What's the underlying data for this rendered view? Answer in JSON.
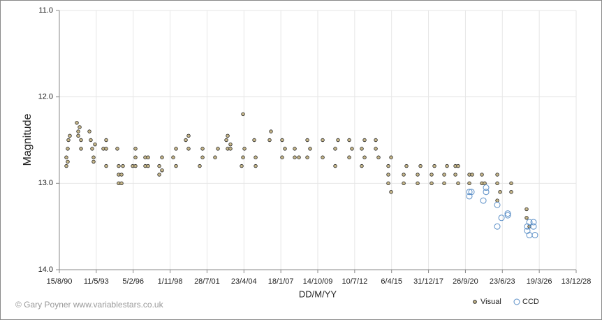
{
  "chart_data": {
    "type": "scatter",
    "x_label": "DD/M/YY",
    "y_label": "Magnitude",
    "credit": "© Gary Poyner  www.variablestars.co.uk",
    "xlim": [
      33100,
      47100
    ],
    "xticks": [
      {
        "value": 33100,
        "label": "15/8/90"
      },
      {
        "value": 34100,
        "label": "11/5/93"
      },
      {
        "value": 35100,
        "label": "5/2/96"
      },
      {
        "value": 36100,
        "label": "1/11/98"
      },
      {
        "value": 37100,
        "label": "28/7/01"
      },
      {
        "value": 38100,
        "label": "23/4/04"
      },
      {
        "value": 39100,
        "label": "18/1/07"
      },
      {
        "value": 40100,
        "label": "14/10/09"
      },
      {
        "value": 41100,
        "label": "10/7/12"
      },
      {
        "value": 42100,
        "label": "6/4/15"
      },
      {
        "value": 43100,
        "label": "31/12/17"
      },
      {
        "value": 44100,
        "label": "26/9/20"
      },
      {
        "value": 45100,
        "label": "23/6/23"
      },
      {
        "value": 46100,
        "label": "19/3/26"
      },
      {
        "value": 47100,
        "label": "13/12/28"
      }
    ],
    "ylim": [
      11,
      14
    ],
    "y_reversed": true,
    "yticks": [
      {
        "value": 11,
        "label": "11.0"
      },
      {
        "value": 12,
        "label": "12.0"
      },
      {
        "value": 13,
        "label": "13.0"
      },
      {
        "value": 14,
        "label": "14.0"
      }
    ],
    "grid": true,
    "legend": "bottom-right",
    "series": [
      {
        "name": "Visual",
        "color": "#222222",
        "fill": "#c8b88a",
        "x": [
          33289,
          33289,
          33327,
          33327,
          33346,
          33384,
          33573,
          33611,
          33611,
          33649,
          33687,
          33687,
          33914,
          33951,
          33989,
          34027,
          34027,
          34065,
          34292,
          34368,
          34368,
          34368,
          34670,
          34708,
          34708,
          34708,
          34784,
          34784,
          34822,
          35087,
          35162,
          35162,
          35162,
          35427,
          35427,
          35503,
          35503,
          35806,
          35806,
          35881,
          35881,
          36184,
          36260,
          36260,
          36525,
          36600,
          36600,
          36903,
          36979,
          36979,
          37319,
          37395,
          37622,
          37660,
          37660,
          37735,
          37735,
          38038,
          38076,
          38076,
          38114,
          38379,
          38417,
          38417,
          38795,
          38833,
          39135,
          39135,
          39211,
          39476,
          39476,
          39590,
          39817,
          39817,
          39892,
          40233,
          40233,
          40573,
          40573,
          40649,
          40952,
          40952,
          41027,
          41292,
          41292,
          41368,
          41368,
          41671,
          41671,
          41746,
          42011,
          42011,
          42011,
          42087,
          42087,
          42428,
          42428,
          42503,
          42806,
          42806,
          42882,
          43184,
          43184,
          43260,
          43525,
          43525,
          43601,
          43828,
          43828,
          43903,
          43903,
          44206,
          44206,
          44282,
          44547,
          44547,
          44622,
          44963,
          44963,
          44963,
          45039,
          45341,
          45341,
          45757,
          45757,
          45833
        ],
        "values": [
          12.7,
          12.8,
          12.6,
          12.75,
          12.5,
          12.45,
          12.3,
          12.4,
          12.45,
          12.35,
          12.5,
          12.6,
          12.4,
          12.5,
          12.6,
          12.7,
          12.75,
          12.55,
          12.6,
          12.5,
          12.6,
          12.8,
          12.6,
          12.8,
          12.9,
          13.0,
          13.0,
          12.9,
          12.8,
          12.8,
          12.6,
          12.7,
          12.8,
          12.7,
          12.8,
          12.7,
          12.8,
          12.8,
          12.9,
          12.7,
          12.85,
          12.7,
          12.6,
          12.8,
          12.5,
          12.45,
          12.6,
          12.8,
          12.6,
          12.7,
          12.7,
          12.6,
          12.5,
          12.45,
          12.6,
          12.55,
          12.6,
          12.8,
          12.2,
          12.7,
          12.6,
          12.5,
          12.7,
          12.8,
          12.5,
          12.4,
          12.5,
          12.7,
          12.6,
          12.7,
          12.6,
          12.7,
          12.5,
          12.7,
          12.6,
          12.5,
          12.7,
          12.6,
          12.8,
          12.5,
          12.5,
          12.7,
          12.6,
          12.6,
          12.8,
          12.5,
          12.7,
          12.5,
          12.6,
          12.7,
          12.8,
          12.9,
          13.0,
          13.1,
          12.7,
          12.9,
          13.0,
          12.8,
          12.9,
          13.0,
          12.8,
          12.9,
          13.0,
          12.8,
          12.9,
          13.0,
          12.8,
          12.8,
          12.9,
          12.8,
          13.0,
          12.9,
          13.0,
          12.9,
          12.9,
          13.0,
          13.0,
          12.9,
          13.0,
          13.2,
          13.1,
          13.0,
          13.1,
          13.3,
          13.4,
          13.5
        ]
      },
      {
        "name": "CCD",
        "color": "#5b8fc7",
        "fill": "none",
        "x": [
          44206,
          44206,
          44263,
          44585,
          44660,
          44660,
          44963,
          44963,
          45077,
          45247,
          45247,
          45776,
          45776,
          45833,
          45833,
          45946,
          45946,
          45984
        ],
        "values": [
          13.1,
          13.15,
          13.1,
          13.2,
          13.05,
          13.1,
          13.5,
          13.25,
          13.4,
          13.35,
          13.37,
          13.5,
          13.55,
          13.6,
          13.45,
          13.45,
          13.5,
          13.6
        ]
      }
    ]
  }
}
